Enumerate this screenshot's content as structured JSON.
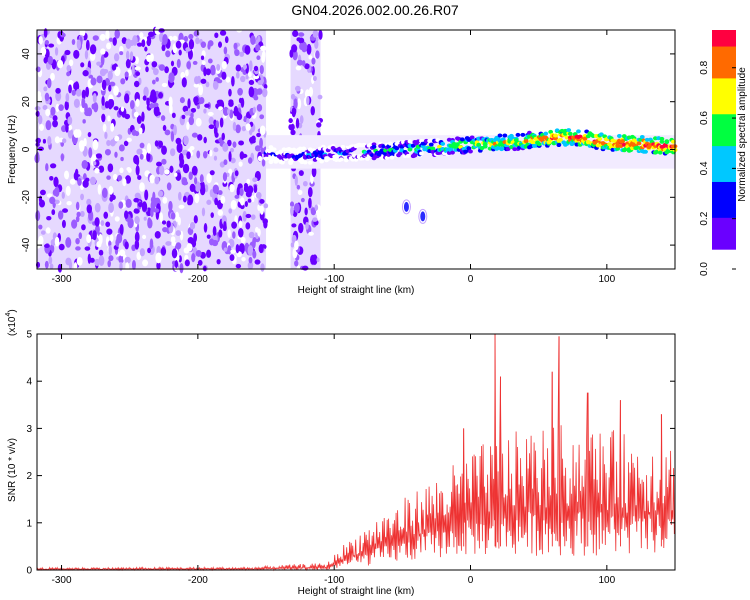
{
  "title": "GN04.2026.002.00.26.R07",
  "colors": {
    "snr_line": "#ee3333",
    "noise": "#8a3dff",
    "colormap": [
      "#ffffff",
      "#6a00ff",
      "#0000ff",
      "#00c8ff",
      "#00ff40",
      "#ffff00",
      "#ff6a00",
      "#ff0040"
    ]
  },
  "chart_data": [
    {
      "type": "heatmap",
      "name": "spectrogram",
      "xlabel": "Height of straight line (km)",
      "ylabel": "Frequency (Hz)",
      "xlim": [
        -318,
        150
      ],
      "ylim": [
        -50,
        50
      ],
      "xticks": [
        -300,
        -200,
        -100,
        0,
        100
      ],
      "yticks": [
        -40,
        -20,
        0,
        20,
        40
      ],
      "colorbar": {
        "label": "Normalized spectral amplitude",
        "range": [
          0,
          0.95
        ],
        "ticks": [
          "0.0",
          "0.2",
          "0.4",
          "0.6",
          "0.8"
        ],
        "tick_values": [
          0,
          0.2,
          0.4,
          0.6,
          0.8
        ]
      },
      "regions": [
        {
          "kind": "noise",
          "x": [
            -318,
            -150
          ],
          "y": [
            -50,
            50
          ]
        },
        {
          "kind": "noise",
          "x": [
            -132,
            -110
          ],
          "y": [
            -50,
            50
          ]
        },
        {
          "kind": "signal_band",
          "x": [
            -150,
            150
          ],
          "center_hz": [
            -3,
            4
          ],
          "width_hz": 4
        }
      ],
      "signal_path": [
        {
          "x": -150,
          "f": -2
        },
        {
          "x": -130,
          "f": -3
        },
        {
          "x": -110,
          "f": -2
        },
        {
          "x": -80,
          "f": -1
        },
        {
          "x": -50,
          "f": 0
        },
        {
          "x": -20,
          "f": 1
        },
        {
          "x": 0,
          "f": 2
        },
        {
          "x": 30,
          "f": 3
        },
        {
          "x": 60,
          "f": 5
        },
        {
          "x": 80,
          "f": 5
        },
        {
          "x": 100,
          "f": 3
        },
        {
          "x": 130,
          "f": 2
        },
        {
          "x": 150,
          "f": 1
        }
      ],
      "isolated_features": [
        {
          "x": -47,
          "f": -24
        },
        {
          "x": -35,
          "f": -28
        }
      ]
    },
    {
      "type": "line",
      "name": "snr",
      "xlabel": "Height of straight line (km)",
      "ylabel": "SNR (10 * v/v)",
      "scale_label": "(x10",
      "scale_exp": "4",
      "scale_close": ")",
      "xlim": [
        -318,
        150
      ],
      "ylim": [
        0,
        5
      ],
      "xticks": [
        -300,
        -200,
        -100,
        0,
        100
      ],
      "yticks": [
        0,
        1,
        2,
        3,
        4,
        5
      ],
      "envelope": [
        {
          "x": -318,
          "lo": 0.0,
          "hi": 0.05
        },
        {
          "x": -160,
          "lo": 0.0,
          "hi": 0.06
        },
        {
          "x": -130,
          "lo": 0.0,
          "hi": 0.12
        },
        {
          "x": -105,
          "lo": 0.0,
          "hi": 0.15
        },
        {
          "x": -95,
          "lo": 0.05,
          "hi": 0.5
        },
        {
          "x": -70,
          "lo": 0.1,
          "hi": 1.1
        },
        {
          "x": -40,
          "lo": 0.2,
          "hi": 1.7
        },
        {
          "x": -10,
          "lo": 0.3,
          "hi": 2.3
        },
        {
          "x": 10,
          "lo": 0.3,
          "hi": 2.7
        },
        {
          "x": 40,
          "lo": 0.3,
          "hi": 3.0
        },
        {
          "x": 70,
          "lo": 0.3,
          "hi": 3.1
        },
        {
          "x": 100,
          "lo": 0.3,
          "hi": 3.0
        },
        {
          "x": 130,
          "lo": 0.3,
          "hi": 2.8
        },
        {
          "x": 150,
          "lo": 0.4,
          "hi": 2.7
        }
      ],
      "peaks": [
        {
          "x": 18,
          "y": 5.0
        },
        {
          "x": 65,
          "y": 4.95
        },
        {
          "x": 60,
          "y": 4.2
        },
        {
          "x": 22,
          "y": 4.1
        },
        {
          "x": 86,
          "y": 3.75
        },
        {
          "x": 140,
          "y": 3.3
        },
        {
          "x": -5,
          "y": 3.0
        },
        {
          "x": 110,
          "y": 3.6
        }
      ]
    }
  ]
}
